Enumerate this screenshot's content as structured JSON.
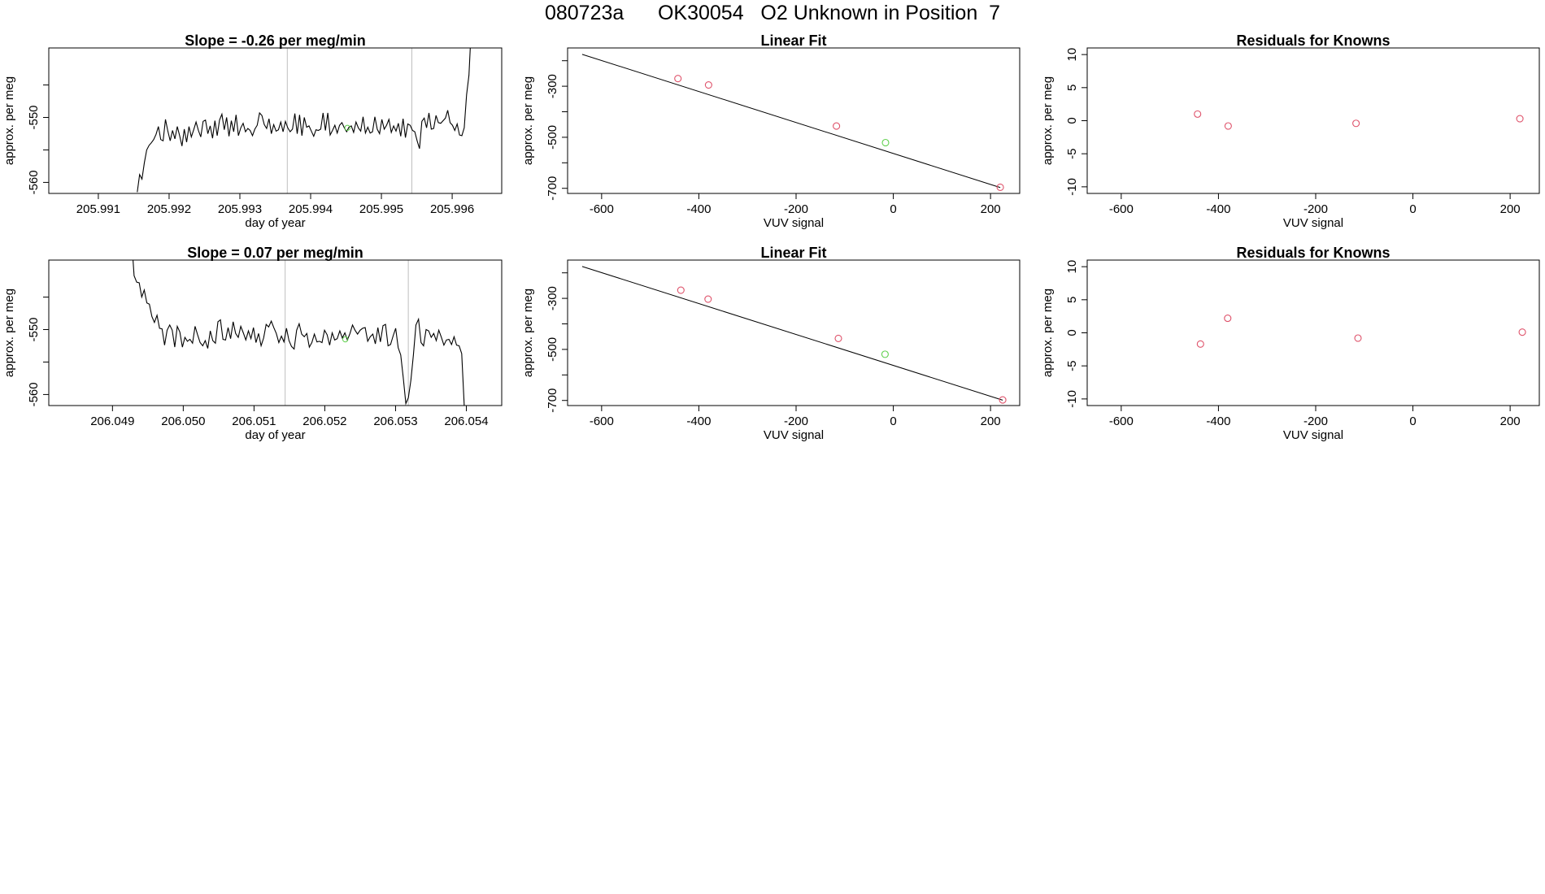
{
  "page_title": "080723a      OK30054   O2 Unknown in Position  7",
  "colors": {
    "trace": "#000000",
    "grid_vline": "#bebebe",
    "known_point": "#df536b",
    "unknown_point": "#61d04f",
    "fit_line": "#000000"
  },
  "chart_data": [
    {
      "id": "trace-row1",
      "type": "line",
      "title": "Slope =  -0.26  per meg/min",
      "xlabel": "day of year",
      "ylabel": "approx. per meg",
      "xlim": [
        205.9903,
        205.9967
      ],
      "ylim": [
        -561.7,
        -539.3
      ],
      "x_ticks": [
        205.991,
        205.992,
        205.993,
        205.994,
        205.995,
        205.996
      ],
      "x_tick_labels": [
        "205.991",
        "205.992",
        "205.993",
        "205.994",
        "205.995",
        "205.996"
      ],
      "y_ticks": [
        -560,
        -555,
        -550,
        -545
      ],
      "y_tick_labels": [
        "-560",
        "",
        "-550",
        ""
      ],
      "vlines": [
        205.99367,
        205.99543
      ],
      "unknown_marker": {
        "x": 205.99452,
        "y": -551.6
      },
      "series": [
        {
          "name": "signal",
          "x_start": 205.99155,
          "x_end": 205.99627,
          "values": [
            -561.5,
            -558.8,
            -559.5,
            -557.0,
            -555.0,
            -554.3,
            -553.9,
            -553.4,
            -552.6,
            -551.4,
            -553.4,
            -553.6,
            -550.3,
            -552.1,
            -553.6,
            -552.0,
            -553.3,
            -551.4,
            -552.8,
            -554.4,
            -551.8,
            -553.8,
            -551.4,
            -553.0,
            -551.9,
            -550.7,
            -552.0,
            -553.0,
            -550.6,
            -550.4,
            -552.5,
            -551.3,
            -553.2,
            -550.5,
            -552.8,
            -550.4,
            -549.5,
            -551.9,
            -550.0,
            -552.9,
            -550.5,
            -552.2,
            -549.6,
            -552.8,
            -551.6,
            -550.9,
            -552.2,
            -551.7,
            -552.0,
            -552.8,
            -551.8,
            -551.2,
            -549.3,
            -549.7,
            -551.1,
            -551.7,
            -550.2,
            -552.5,
            -551.1,
            -552.1,
            -551.9,
            -550.7,
            -552.2,
            -550.6,
            -551.6,
            -552.2,
            -551.8,
            -549.4,
            -552.5,
            -549.6,
            -552.8,
            -550.0,
            -551.5,
            -551.3,
            -552.1,
            -552.9,
            -551.9,
            -552.0,
            -551.8,
            -549.3,
            -552.0,
            -549.3,
            -552.7,
            -552.0,
            -551.2,
            -552.4,
            -551.2,
            -550.8,
            -551.6,
            -552.2,
            -551.5,
            -551.3,
            -552.3,
            -550.7,
            -551.6,
            -552.1,
            -549.9,
            -552.4,
            -551.5,
            -552.4,
            -552.2,
            -549.9,
            -551.8,
            -552.5,
            -550.3,
            -551.8,
            -551.2,
            -550.3,
            -552.3,
            -551.3,
            -552.1,
            -550.9,
            -552.9,
            -550.2,
            -553.1,
            -551.0,
            -551.2,
            -552.0,
            -552.2,
            -553.6,
            -554.8,
            -550.6,
            -550.1,
            -551.6,
            -549.3,
            -551.8,
            -551.7,
            -549.7,
            -550.8,
            -550.9,
            -550.5,
            -550.1,
            -548.9,
            -550.8,
            -551.2,
            -552.0,
            -551.0,
            -552.7,
            -552.8,
            -551.6,
            -546.5,
            -543.5,
            -536.0
          ]
        }
      ]
    },
    {
      "id": "fit-row1",
      "type": "scatter",
      "title": "Linear Fit",
      "xlabel": "VUV signal",
      "ylabel": "approx. per meg",
      "xlim": [
        -670,
        260
      ],
      "ylim": [
        -720,
        -150
      ],
      "x_ticks": [
        -600,
        -400,
        -200,
        0,
        200
      ],
      "x_tick_labels": [
        "-600",
        "-400",
        "-200",
        "0",
        "200"
      ],
      "y_ticks": [
        -700,
        -600,
        -500,
        -400,
        -300,
        -200
      ],
      "y_tick_labels": [
        "-700",
        "",
        "-500",
        "",
        "-300",
        ""
      ],
      "fit_line": {
        "x1": -640,
        "y1": -175,
        "x2": 220,
        "y2": -697
      },
      "known_points": [
        {
          "x": -443,
          "y": -270
        },
        {
          "x": -380,
          "y": -295
        },
        {
          "x": -117,
          "y": -456
        },
        {
          "x": 220,
          "y": -696
        }
      ],
      "unknown_points": [
        {
          "x": -16,
          "y": -521
        }
      ]
    },
    {
      "id": "resid-row1",
      "type": "scatter",
      "title": "Residuals for Knowns",
      "xlabel": "VUV signal",
      "ylabel": "approx. per meg",
      "xlim": [
        -670,
        260
      ],
      "ylim": [
        -11,
        11
      ],
      "x_ticks": [
        -600,
        -400,
        -200,
        0,
        200
      ],
      "x_tick_labels": [
        "-600",
        "-400",
        "-200",
        "0",
        "200"
      ],
      "y_ticks": [
        -10,
        -5,
        0,
        5,
        10
      ],
      "y_tick_labels": [
        "-10",
        "-5",
        "0",
        "5",
        "10"
      ],
      "known_points": [
        {
          "x": -443,
          "y": 1.0
        },
        {
          "x": -380,
          "y": -0.8
        },
        {
          "x": -117,
          "y": -0.4
        },
        {
          "x": 220,
          "y": 0.3
        }
      ]
    },
    {
      "id": "trace-row2",
      "type": "line",
      "title": "Slope =  0.07  per meg/min",
      "xlabel": "day of year",
      "ylabel": "approx. per meg",
      "xlim": [
        206.0481,
        206.0545
      ],
      "ylim": [
        -561.7,
        -539.3
      ],
      "x_ticks": [
        206.049,
        206.05,
        206.051,
        206.052,
        206.053,
        206.054
      ],
      "x_tick_labels": [
        "206.049",
        "206.050",
        "206.051",
        "206.052",
        "206.053",
        "206.054"
      ],
      "y_ticks": [
        -560,
        -555,
        -550,
        -545
      ],
      "y_tick_labels": [
        "-560",
        "",
        "-550",
        ""
      ],
      "vlines": [
        206.05144,
        206.05318
      ],
      "unknown_marker": {
        "x": 206.05229,
        "y": -551.5
      },
      "series": [
        {
          "name": "signal",
          "x_start": 206.04927,
          "x_end": 206.05397,
          "values": [
            -536.0,
            -541.7,
            -542.7,
            -542.8,
            -545.0,
            -543.9,
            -545.9,
            -546.1,
            -548.0,
            -548.9,
            -547.8,
            -549.8,
            -549.9,
            -552.4,
            -550.1,
            -549.3,
            -550.1,
            -552.7,
            -549.5,
            -550.4,
            -552.7,
            -551.2,
            -551.8,
            -551.5,
            -552.1,
            -549.5,
            -550.8,
            -552.0,
            -552.5,
            -551.7,
            -552.9,
            -550.2,
            -551.7,
            -552.1,
            -548.8,
            -548.5,
            -551.5,
            -551.6,
            -549.7,
            -551.4,
            -548.8,
            -550.6,
            -551.2,
            -549.5,
            -550.5,
            -551.6,
            -550.2,
            -551.4,
            -549.7,
            -552.0,
            -550.6,
            -552.5,
            -551.3,
            -549.2,
            -549.6,
            -548.7,
            -549.7,
            -550.6,
            -552.0,
            -551.0,
            -551.9,
            -549.8,
            -551.7,
            -552.6,
            -553.0,
            -550.1,
            -549.1,
            -550.7,
            -551.1,
            -550.6,
            -552.7,
            -552.0,
            -550.7,
            -551.9,
            -551.8,
            -552.0,
            -550.1,
            -550.8,
            -552.4,
            -550.5,
            -551.6,
            -551.4,
            -550.2,
            -551.3,
            -550.5,
            -551.6,
            -550.6,
            -549.3,
            -550.1,
            -550.7,
            -550.1,
            -549.8,
            -549.7,
            -551.8,
            -551.1,
            -550.7,
            -552.2,
            -549.7,
            -551.9,
            -549.4,
            -549.2,
            -552.5,
            -552.3,
            -551.0,
            -549.8,
            -552.8,
            -553.9,
            -557.4,
            -561.4,
            -560.5,
            -557.8,
            -553.9,
            -549.3,
            -548.4,
            -552.0,
            -552.5,
            -550.0,
            -550.2,
            -551.2,
            -550.6,
            -551.7,
            -550.1,
            -551.2,
            -552.4,
            -551.6,
            -551.5,
            -552.3,
            -551.1,
            -552.4,
            -552.5,
            -553.7,
            -561.7
          ]
        }
      ]
    },
    {
      "id": "fit-row2",
      "type": "scatter",
      "title": "Linear Fit",
      "xlabel": "VUV signal",
      "ylabel": "approx. per meg",
      "xlim": [
        -670,
        260
      ],
      "ylim": [
        -720,
        -150
      ],
      "x_ticks": [
        -600,
        -400,
        -200,
        0,
        200
      ],
      "x_tick_labels": [
        "-600",
        "-400",
        "-200",
        "0",
        "200"
      ],
      "y_ticks": [
        -700,
        -600,
        -500,
        -400,
        -300,
        -200
      ],
      "y_tick_labels": [
        "-700",
        "",
        "-500",
        "",
        "-300",
        ""
      ],
      "fit_line": {
        "x1": -640,
        "y1": -175,
        "x2": 225,
        "y2": -699
      },
      "known_points": [
        {
          "x": -437,
          "y": -268
        },
        {
          "x": -381,
          "y": -303
        },
        {
          "x": -113,
          "y": -457
        },
        {
          "x": 225,
          "y": -698
        }
      ],
      "unknown_points": [
        {
          "x": -17,
          "y": -519
        }
      ]
    },
    {
      "id": "resid-row2",
      "type": "scatter",
      "title": "Residuals for Knowns",
      "xlabel": "VUV signal",
      "ylabel": "approx. per meg",
      "xlim": [
        -670,
        260
      ],
      "ylim": [
        -11,
        11
      ],
      "x_ticks": [
        -600,
        -400,
        -200,
        0,
        200
      ],
      "x_tick_labels": [
        "-600",
        "-400",
        "-200",
        "0",
        "200"
      ],
      "y_ticks": [
        -10,
        -5,
        0,
        5,
        10
      ],
      "y_tick_labels": [
        "-10",
        "-5",
        "0",
        "5",
        "10"
      ],
      "known_points": [
        {
          "x": -437,
          "y": -1.7
        },
        {
          "x": -381,
          "y": 2.2
        },
        {
          "x": -113,
          "y": -0.8
        },
        {
          "x": 225,
          "y": 0.1
        }
      ]
    }
  ]
}
